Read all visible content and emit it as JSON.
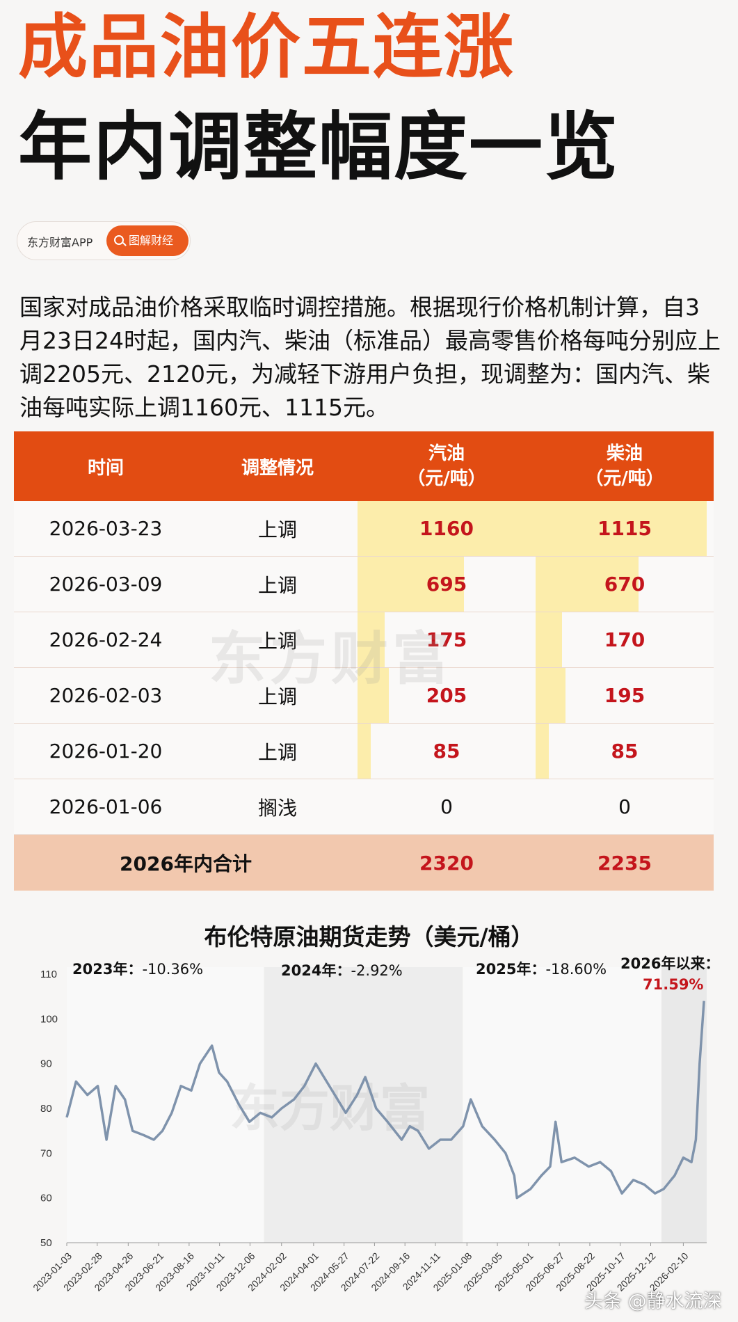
{
  "header": {
    "title_line1": "成品油价五连涨",
    "title_line2": "年内调整幅度一览",
    "source": "东方财富APP",
    "tag": "图解财经"
  },
  "intro": "国家对成品油价格采取临时调控措施。根据现行价格机制计算，自3月23日24时起，国内汽、柴油（标准品）最高零售价格每吨分别应上调2205元、2120元，为减轻下游用户负担，现调整为：国内汽、柴油每吨实际上调1160元、1115元。",
  "table": {
    "headers": {
      "date": "时间",
      "status": "调整情况",
      "gasoline": "汽油",
      "diesel": "柴油",
      "unit": "（元/吨）"
    },
    "rows": [
      {
        "date": "2026-03-23",
        "status": "上调",
        "gasoline": "1160",
        "diesel": "1115"
      },
      {
        "date": "2026-03-09",
        "status": "上调",
        "gasoline": "695",
        "diesel": "670"
      },
      {
        "date": "2026-02-24",
        "status": "上调",
        "gasoline": "175",
        "diesel": "170"
      },
      {
        "date": "2026-02-03",
        "status": "上调",
        "gasoline": "205",
        "diesel": "195"
      },
      {
        "date": "2026-01-20",
        "status": "上调",
        "gasoline": "85",
        "diesel": "85"
      },
      {
        "date": "2026-01-06",
        "status": "搁浅",
        "gasoline": "0",
        "diesel": "0"
      }
    ],
    "total": {
      "label": "2026年内合计",
      "gasoline": "2320",
      "diesel": "2235"
    }
  },
  "watermark": "东方财富",
  "footer_watermark": "头条 @静水流深",
  "colors": {
    "accent": "#e8501a",
    "header_bg": "#e24c12",
    "value_red": "#c4151c",
    "bar_yellow": "#fbeb9d",
    "total_bg": "#f2c8ae",
    "line": "#7f93ac"
  },
  "chart_data": {
    "type": "line",
    "title": "布伦特原油期货走势（美元/桶）",
    "ylim": [
      50,
      110
    ],
    "yticks": [
      50,
      60,
      70,
      80,
      90,
      100,
      110
    ],
    "grid": false,
    "xticks": [
      "2023-01-03",
      "2023-02-28",
      "2023-04-26",
      "2023-06-21",
      "2023-08-16",
      "2023-10-11",
      "2023-12-06",
      "2024-02-02",
      "2024-04-01",
      "2024-05-27",
      "2024-07-22",
      "2024-09-16",
      "2024-11-11",
      "2025-01-08",
      "2025-03-05",
      "2025-05-01",
      "2025-06-27",
      "2025-08-22",
      "2025-10-17",
      "2025-12-12",
      "2026-02-10"
    ],
    "annotations": [
      {
        "label": "2023年：",
        "value": "-10.36%"
      },
      {
        "label": "2024年：",
        "value": "-2.92%"
      },
      {
        "label": "2025年：",
        "value": "-18.60%"
      },
      {
        "label": "2026年以来：",
        "value": "71.59%"
      }
    ],
    "series": [
      {
        "x": [
          "2023-01-03",
          "2023-01-20",
          "2023-02-10",
          "2023-03-01",
          "2023-03-17",
          "2023-04-03",
          "2023-04-20",
          "2023-05-04",
          "2023-05-25",
          "2023-06-12",
          "2023-06-28",
          "2023-07-15",
          "2023-08-01",
          "2023-08-20",
          "2023-09-05",
          "2023-09-27",
          "2023-10-10",
          "2023-10-25",
          "2023-11-15",
          "2023-12-05",
          "2023-12-25",
          "2024-01-15",
          "2024-02-02",
          "2024-02-25",
          "2024-03-15",
          "2024-04-05",
          "2024-04-20",
          "2024-05-10",
          "2024-05-30",
          "2024-06-20",
          "2024-07-05",
          "2024-07-25",
          "2024-08-15",
          "2024-09-10",
          "2024-09-25",
          "2024-10-10",
          "2024-10-30",
          "2024-11-20",
          "2024-12-10",
          "2025-01-01",
          "2025-01-15",
          "2025-02-05",
          "2025-02-28",
          "2025-03-20",
          "2025-04-05",
          "2025-04-10",
          "2025-05-05",
          "2025-05-25",
          "2025-06-10",
          "2025-06-20",
          "2025-07-01",
          "2025-07-25",
          "2025-08-20",
          "2025-09-10",
          "2025-09-30",
          "2025-10-20",
          "2025-11-10",
          "2025-11-30",
          "2025-12-20",
          "2026-01-05",
          "2026-01-25",
          "2026-02-10",
          "2026-02-25",
          "2026-03-05",
          "2026-03-12",
          "2026-03-20"
        ],
        "values": [
          78,
          86,
          83,
          85,
          73,
          85,
          82,
          75,
          74,
          73,
          75,
          79,
          85,
          84,
          90,
          94,
          88,
          86,
          81,
          77,
          79,
          78,
          80,
          82,
          85,
          90,
          87,
          83,
          79,
          83,
          87,
          80,
          77,
          73,
          76,
          75,
          71,
          73,
          73,
          76,
          82,
          76,
          73,
          70,
          65,
          60,
          62,
          65,
          67,
          77,
          68,
          69,
          67,
          68,
          66,
          61,
          64,
          63,
          61,
          62,
          65,
          69,
          68,
          73,
          90,
          104
        ]
      }
    ]
  }
}
